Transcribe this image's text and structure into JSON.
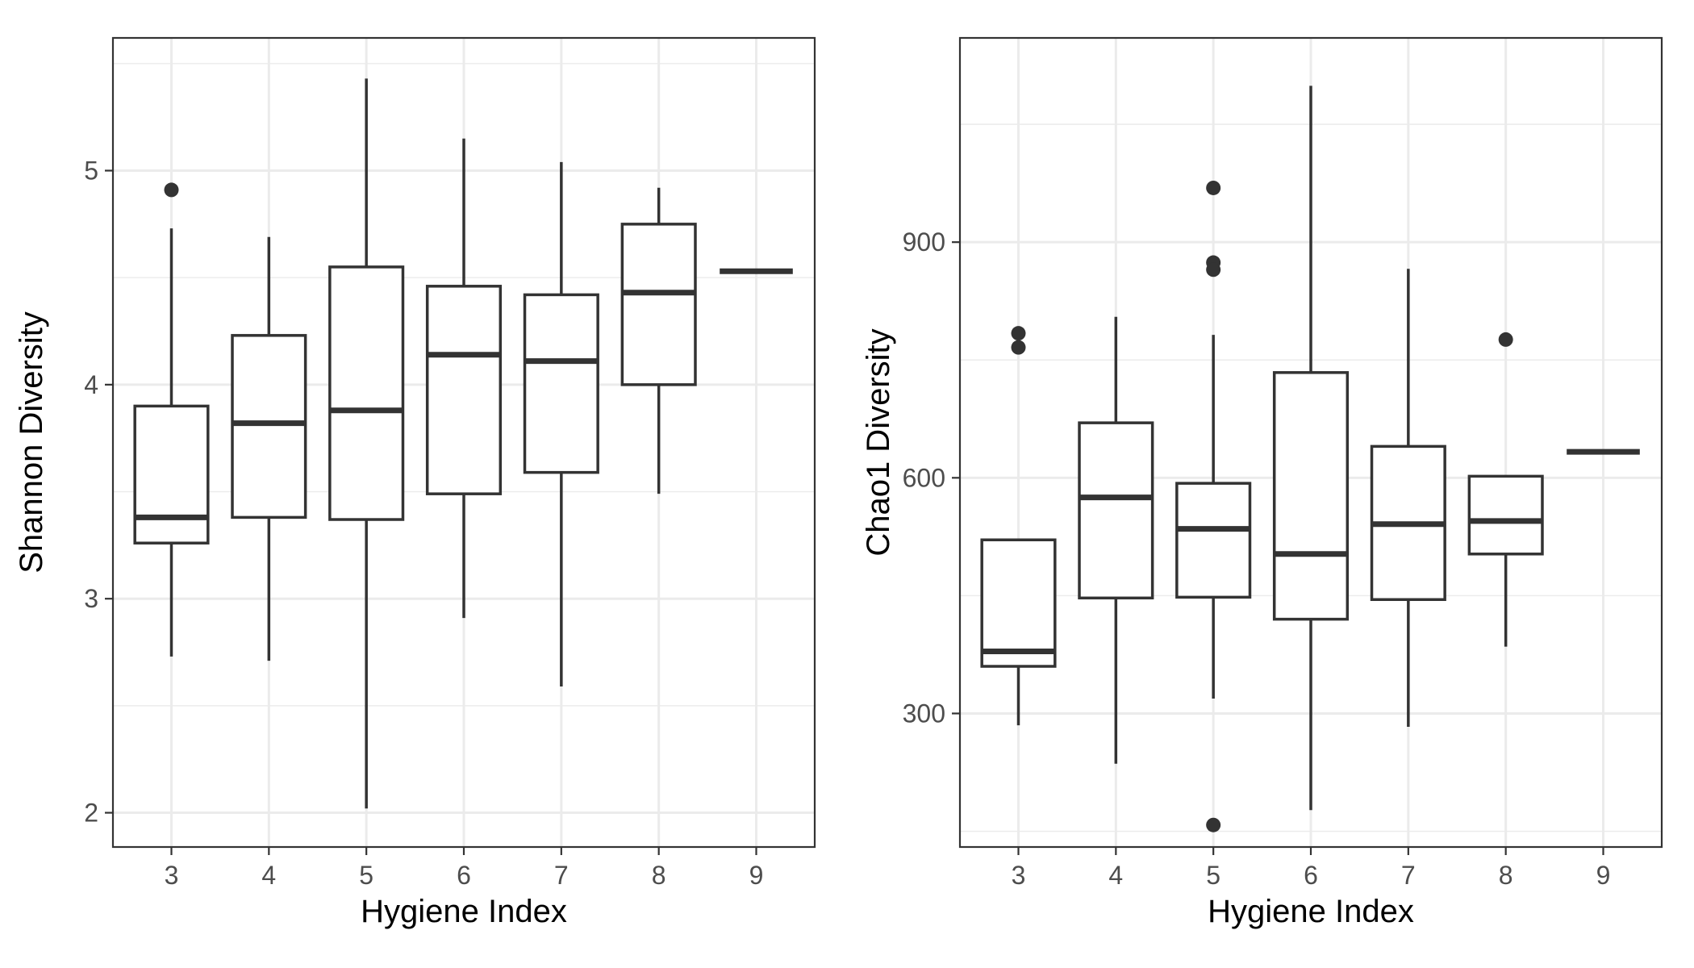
{
  "chart_data": [
    {
      "type": "boxplot",
      "xlabel": "Hygiene Index",
      "ylabel": "Shannon Diversity",
      "ylim": [
        1.84,
        5.62
      ],
      "y_ticks": [
        2,
        3,
        4,
        5
      ],
      "y_minor_ticks": [
        2.5,
        3.5,
        4.5,
        5.5
      ],
      "grid": true,
      "categories": [
        "3",
        "4",
        "5",
        "6",
        "7",
        "8",
        "9"
      ],
      "boxes": [
        {
          "category": "3",
          "whisker_low": 2.73,
          "q1": 3.26,
          "median": 3.38,
          "q3": 3.9,
          "whisker_high": 4.73,
          "outliers": [
            4.91
          ]
        },
        {
          "category": "4",
          "whisker_low": 2.71,
          "q1": 3.38,
          "median": 3.82,
          "q3": 4.23,
          "whisker_high": 4.69,
          "outliers": []
        },
        {
          "category": "5",
          "whisker_low": 2.02,
          "q1": 3.37,
          "median": 3.88,
          "q3": 4.55,
          "whisker_high": 5.43,
          "outliers": []
        },
        {
          "category": "6",
          "whisker_low": 2.91,
          "q1": 3.49,
          "median": 4.14,
          "q3": 4.46,
          "whisker_high": 5.15,
          "outliers": []
        },
        {
          "category": "7",
          "whisker_low": 2.59,
          "q1": 3.59,
          "median": 4.11,
          "q3": 4.42,
          "whisker_high": 5.04,
          "outliers": []
        },
        {
          "category": "8",
          "whisker_low": 3.49,
          "q1": 4.0,
          "median": 4.43,
          "q3": 4.75,
          "whisker_high": 4.92,
          "outliers": []
        },
        {
          "category": "9",
          "whisker_low": 4.53,
          "q1": 4.53,
          "median": 4.53,
          "q3": 4.53,
          "whisker_high": 4.53,
          "outliers": []
        }
      ]
    },
    {
      "type": "boxplot",
      "xlabel": "Hygiene Index",
      "ylabel": "Chao1 Diversity",
      "ylim": [
        130,
        1160
      ],
      "y_ticks": [
        300,
        600,
        900
      ],
      "y_minor_ticks": [
        150,
        450,
        750,
        1050
      ],
      "grid": true,
      "categories": [
        "3",
        "4",
        "5",
        "6",
        "7",
        "8",
        "9"
      ],
      "boxes": [
        {
          "category": "3",
          "whisker_low": 285,
          "q1": 360,
          "median": 379,
          "q3": 521,
          "whisker_high": 521,
          "outliers": [
            784,
            766
          ]
        },
        {
          "category": "4",
          "whisker_low": 236,
          "q1": 447,
          "median": 575,
          "q3": 670,
          "whisker_high": 805,
          "outliers": []
        },
        {
          "category": "5",
          "whisker_low": 319,
          "q1": 448,
          "median": 535,
          "q3": 593,
          "whisker_high": 782,
          "outliers": [
            969,
            874,
            865,
            158
          ]
        },
        {
          "category": "6",
          "whisker_low": 177,
          "q1": 420,
          "median": 503,
          "q3": 734,
          "whisker_high": 1099,
          "outliers": []
        },
        {
          "category": "7",
          "whisker_low": 283,
          "q1": 445,
          "median": 541,
          "q3": 640,
          "whisker_high": 866,
          "outliers": []
        },
        {
          "category": "8",
          "whisker_low": 385,
          "q1": 503,
          "median": 545,
          "q3": 602,
          "whisker_high": 602,
          "outliers": [
            776
          ]
        },
        {
          "category": "9",
          "whisker_low": 633,
          "q1": 633,
          "median": 633,
          "q3": 633,
          "whisker_high": 633,
          "outliers": []
        }
      ]
    }
  ]
}
